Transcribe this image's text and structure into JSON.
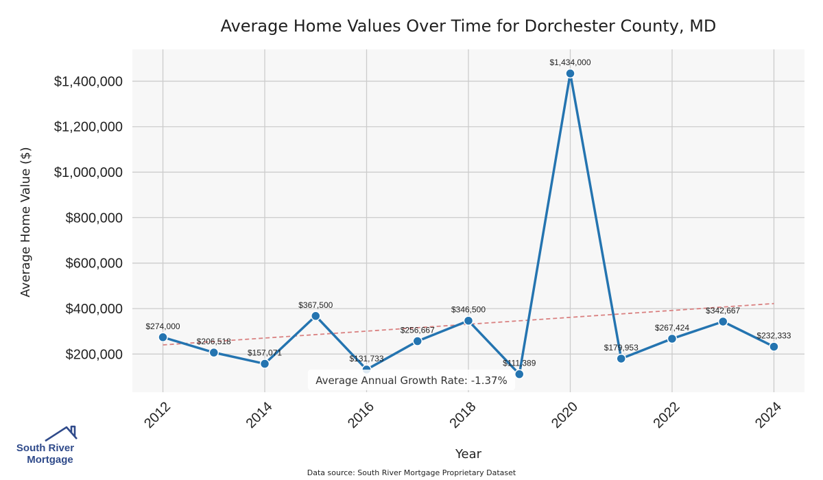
{
  "chart_data": {
    "type": "line",
    "title": "Average Home Values Over Time for Dorchester County, MD",
    "xlabel": "Year",
    "ylabel": "Average Home Value ($)",
    "x": [
      2012,
      2013,
      2014,
      2015,
      2016,
      2017,
      2018,
      2019,
      2020,
      2021,
      2022,
      2023,
      2024
    ],
    "series": [
      {
        "values": [
          274000,
          206518,
          157071,
          367500,
          131733,
          256667,
          346500,
          111389,
          1434000,
          179953,
          267424,
          342667,
          232333
        ],
        "labels": [
          "$274,000",
          "$206,518",
          "$157,071",
          "$367,500",
          "$131,733",
          "$256,667",
          "$346,500",
          "$111,389",
          "$1,434,000",
          "$179,953",
          "$267,424",
          "$342,667",
          "$232,333"
        ],
        "color": "#2474b0"
      }
    ],
    "trendline": {
      "start": 240000,
      "end": 422000,
      "color": "#d98080",
      "style": "dashed"
    },
    "xticks": [
      "2012",
      "2014",
      "2016",
      "2018",
      "2020",
      "2022",
      "2024"
    ],
    "xtick_values": [
      2012,
      2014,
      2016,
      2018,
      2020,
      2022,
      2024
    ],
    "yticks": [
      "$200,000",
      "$400,000",
      "$600,000",
      "$800,000",
      "$1,000,000",
      "$1,200,000",
      "$1,400,000"
    ],
    "ytick_values": [
      200000,
      400000,
      600000,
      800000,
      1000000,
      1200000,
      1400000
    ],
    "xlim": [
      2011.4,
      2024.6
    ],
    "ylim": [
      32000,
      1540000
    ],
    "grid": true,
    "annotation": "Average Annual Growth Rate: -1.37%"
  },
  "footer": {
    "source": "Data source: South River Mortgage Proprietary Dataset",
    "logo_line1": "South River",
    "logo_line2": "Mortgage"
  },
  "colors": {
    "plot_bg": "#f7f7f7",
    "grid": "#cccccc",
    "line": "#2474b0",
    "logo": "#2f4a8a"
  }
}
